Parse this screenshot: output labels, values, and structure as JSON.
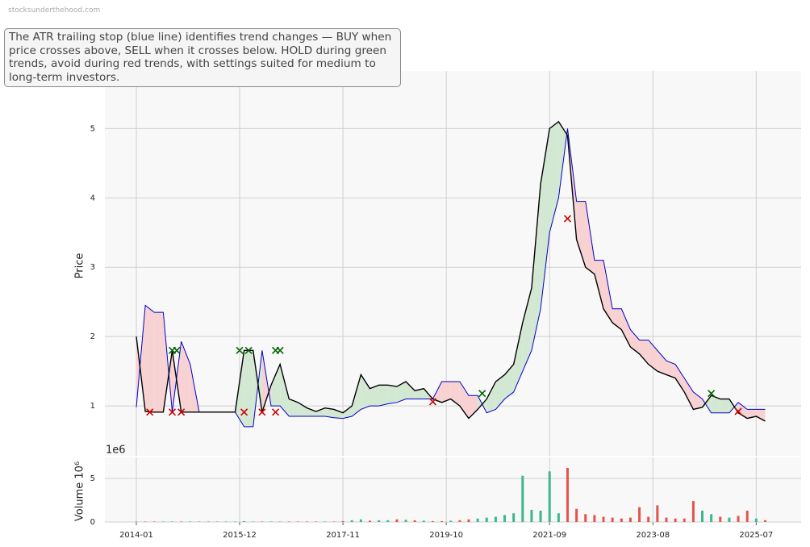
{
  "watermark": "stocksunderthehood.com",
  "annotation": "The ATR trailing stop (blue line) identifies trend changes — BUY when price crosses above, SELL when it crosses below. HOLD during green trends, avoid during red trends, with settings suited for medium to long-term investors.",
  "chart_data": [
    {
      "type": "line",
      "ylabel": "Price",
      "x": [
        "2014-01",
        "2014-03",
        "2014-05",
        "2014-07",
        "2014-09",
        "2014-11",
        "2015-01",
        "2015-03",
        "2015-05",
        "2015-07",
        "2015-09",
        "2015-11",
        "2016-01",
        "2016-03",
        "2016-05",
        "2016-07",
        "2016-09",
        "2016-11",
        "2017-01",
        "2017-03",
        "2017-05",
        "2017-07",
        "2017-09",
        "2017-11",
        "2018-01",
        "2018-03",
        "2018-05",
        "2018-07",
        "2018-09",
        "2018-11",
        "2019-01",
        "2019-03",
        "2019-05",
        "2019-07",
        "2019-09",
        "2019-11",
        "2020-01",
        "2020-03",
        "2020-05",
        "2020-07",
        "2020-09",
        "2020-11",
        "2021-01",
        "2021-03",
        "2021-05",
        "2021-07",
        "2021-09",
        "2021-11",
        "2022-01",
        "2022-03",
        "2022-05",
        "2022-07",
        "2022-09",
        "2022-11",
        "2023-01",
        "2023-03",
        "2023-05",
        "2023-07",
        "2023-09",
        "2023-11",
        "2024-01",
        "2024-03",
        "2024-05",
        "2024-07",
        "2024-09",
        "2024-11",
        "2025-01",
        "2025-03",
        "2025-05",
        "2025-07",
        "2025-09"
      ],
      "xlim": [
        "2013-06",
        "2026-05"
      ],
      "xticks": [
        "2014-01",
        "2015-12",
        "2017-11",
        "2019-10",
        "2021-09",
        "2023-08",
        "2025-07"
      ],
      "ylim": [
        0.28,
        5.83
      ],
      "yticks": [
        1,
        2,
        3,
        4,
        5
      ],
      "grid": true,
      "series": [
        {
          "color": "#000000",
          "values": [
            2.0,
            0.92,
            0.91,
            0.91,
            1.8,
            0.91,
            0.91,
            0.91,
            0.91,
            0.91,
            0.91,
            0.91,
            1.8,
            1.8,
            0.91,
            1.3,
            1.6,
            1.1,
            1.05,
            0.97,
            0.92,
            0.97,
            0.95,
            0.9,
            1.0,
            1.45,
            1.25,
            1.3,
            1.3,
            1.28,
            1.35,
            1.22,
            1.25,
            1.1,
            1.05,
            1.1,
            1.0,
            0.82,
            0.95,
            1.1,
            1.35,
            1.45,
            1.6,
            2.2,
            2.7,
            4.2,
            5.0,
            5.1,
            4.9,
            3.4,
            3.0,
            2.9,
            2.4,
            2.2,
            2.1,
            1.85,
            1.75,
            1.6,
            1.5,
            1.45,
            1.4,
            1.2,
            0.95,
            0.98,
            1.15,
            1.1,
            1.1,
            0.9,
            0.82,
            0.85,
            0.78
          ]
        },
        {
          "color": "#0000cc",
          "values": [
            0.98,
            2.45,
            2.35,
            2.35,
            0.91,
            1.93,
            1.6,
            0.91,
            0.91,
            0.91,
            0.91,
            0.91,
            0.7,
            0.7,
            1.8,
            1.0,
            1.0,
            0.85,
            0.85,
            0.85,
            0.85,
            0.85,
            0.83,
            0.82,
            0.85,
            0.95,
            1.0,
            1.0,
            1.03,
            1.05,
            1.1,
            1.1,
            1.1,
            1.1,
            1.35,
            1.35,
            1.35,
            1.15,
            1.15,
            0.9,
            0.95,
            1.1,
            1.2,
            1.5,
            1.8,
            2.4,
            3.5,
            4.0,
            5.0,
            3.95,
            3.95,
            3.1,
            3.1,
            2.4,
            2.4,
            2.1,
            1.95,
            1.95,
            1.8,
            1.65,
            1.6,
            1.4,
            1.2,
            1.1,
            0.9,
            0.9,
            0.9,
            1.05,
            0.95,
            0.95,
            0.95
          ]
        }
      ],
      "fill_above": "#d3e8d3",
      "fill_below": "#f8d2d2",
      "buys": {
        "color": "#006400",
        "x": [
          "2014-09",
          "2014-10",
          "2015-12",
          "2016-02",
          "2016-08",
          "2016-09",
          "2020-06",
          "2024-09"
        ],
        "values": [
          1.8,
          1.8,
          1.8,
          1.8,
          1.8,
          1.8,
          1.18,
          1.18
        ]
      },
      "sells": {
        "color": "#cc0000",
        "x": [
          "2014-04",
          "2014-09",
          "2014-11",
          "2016-01",
          "2016-05",
          "2016-08",
          "2019-07",
          "2022-01",
          "2025-03"
        ],
        "values": [
          0.91,
          0.91,
          0.91,
          0.91,
          0.91,
          0.91,
          1.06,
          3.7,
          0.92
        ]
      }
    },
    {
      "type": "bar",
      "ylabel": "Volume  10⁶",
      "offset_label": "1e6",
      "ylim": [
        0,
        7.4
      ],
      "yticks": [
        0,
        5
      ],
      "up_color": "#3cb88a",
      "down_color": "#e8524a",
      "values": [
        0.05,
        0.05,
        0.05,
        0.05,
        0.05,
        0.05,
        0.05,
        0.05,
        0.05,
        0.05,
        0.05,
        0.05,
        0.1,
        0.05,
        0.05,
        0.05,
        0.05,
        0.05,
        0.05,
        0.05,
        0.05,
        0.05,
        0.05,
        0.1,
        0.2,
        0.3,
        0.15,
        0.2,
        0.2,
        0.3,
        0.25,
        0.2,
        0.15,
        0.1,
        0.1,
        0.15,
        0.2,
        0.3,
        0.4,
        0.5,
        0.6,
        0.8,
        1.0,
        5.3,
        1.4,
        1.3,
        5.8,
        1.0,
        6.2,
        1.5,
        0.9,
        0.8,
        0.6,
        0.5,
        0.4,
        0.5,
        1.7,
        0.6,
        1.9,
        0.5,
        0.4,
        0.4,
        2.4,
        1.3,
        0.9,
        0.6,
        0.5,
        0.7,
        1.3,
        0.4,
        0.2
      ]
    }
  ]
}
